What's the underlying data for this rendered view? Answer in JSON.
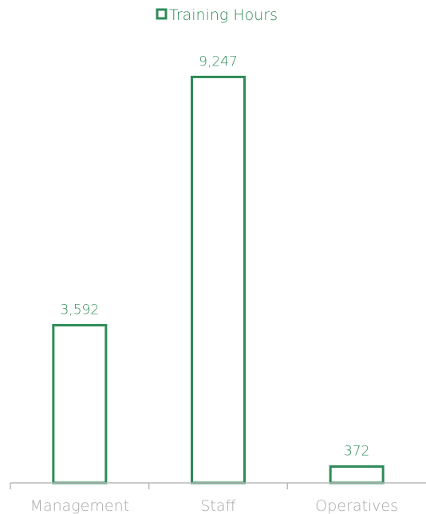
{
  "colors": {
    "series": "#2e8b57",
    "axis": "#b8b8b8",
    "tick_text": "#a8a8a8"
  },
  "chart_data": {
    "type": "bar",
    "categories": [
      "Management",
      "Staff",
      "Operatives"
    ],
    "series": [
      {
        "name": "Training Hours",
        "values": [
          3592,
          9247,
          372
        ],
        "labels": [
          "3,592",
          "9,247",
          "372"
        ]
      }
    ],
    "ylim": [
      0,
      10000
    ],
    "legend_position": "top-center",
    "grid": false,
    "bar_style": "outline"
  }
}
